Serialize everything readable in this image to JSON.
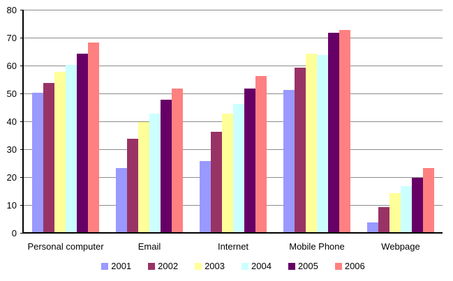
{
  "chart_data": {
    "type": "bar",
    "title": "",
    "xlabel": "",
    "ylabel": "",
    "categories": [
      "Personal computer",
      "Email",
      "Internet",
      "Mobile Phone",
      "Webpage"
    ],
    "series": [
      {
        "name": "2001",
        "color": "#9999FF",
        "values": [
          50.5,
          23.5,
          26.0,
          51.5,
          4.0
        ]
      },
      {
        "name": "2002",
        "color": "#993366",
        "values": [
          54.0,
          34.0,
          36.5,
          59.5,
          9.5
        ]
      },
      {
        "name": "2003",
        "color": "#FFFF99",
        "values": [
          58.0,
          40.0,
          43.0,
          64.5,
          14.5
        ]
      },
      {
        "name": "2004",
        "color": "#CCFFFF",
        "values": [
          60.5,
          43.0,
          46.5,
          64.0,
          17.0
        ]
      },
      {
        "name": "2005",
        "color": "#660066",
        "values": [
          64.5,
          48.0,
          52.0,
          72.0,
          20.0
        ]
      },
      {
        "name": "2006",
        "color": "#FF8080",
        "values": [
          68.5,
          52.0,
          56.5,
          73.0,
          23.5
        ]
      }
    ],
    "ylim": [
      0,
      80
    ],
    "ytick_step": 10,
    "ytick_labels": [
      "0",
      "10",
      "20",
      "30",
      "40",
      "50",
      "60",
      "70",
      "80"
    ],
    "grid": true,
    "legend_position": "bottom",
    "legend_labels": [
      "2001",
      "2002",
      "2003",
      "2004",
      "2005",
      "2006"
    ]
  },
  "colors": {
    "background": "#FFFFFF",
    "gridline": "#8C8C8C",
    "axis": "#000000",
    "text": "#000000"
  }
}
